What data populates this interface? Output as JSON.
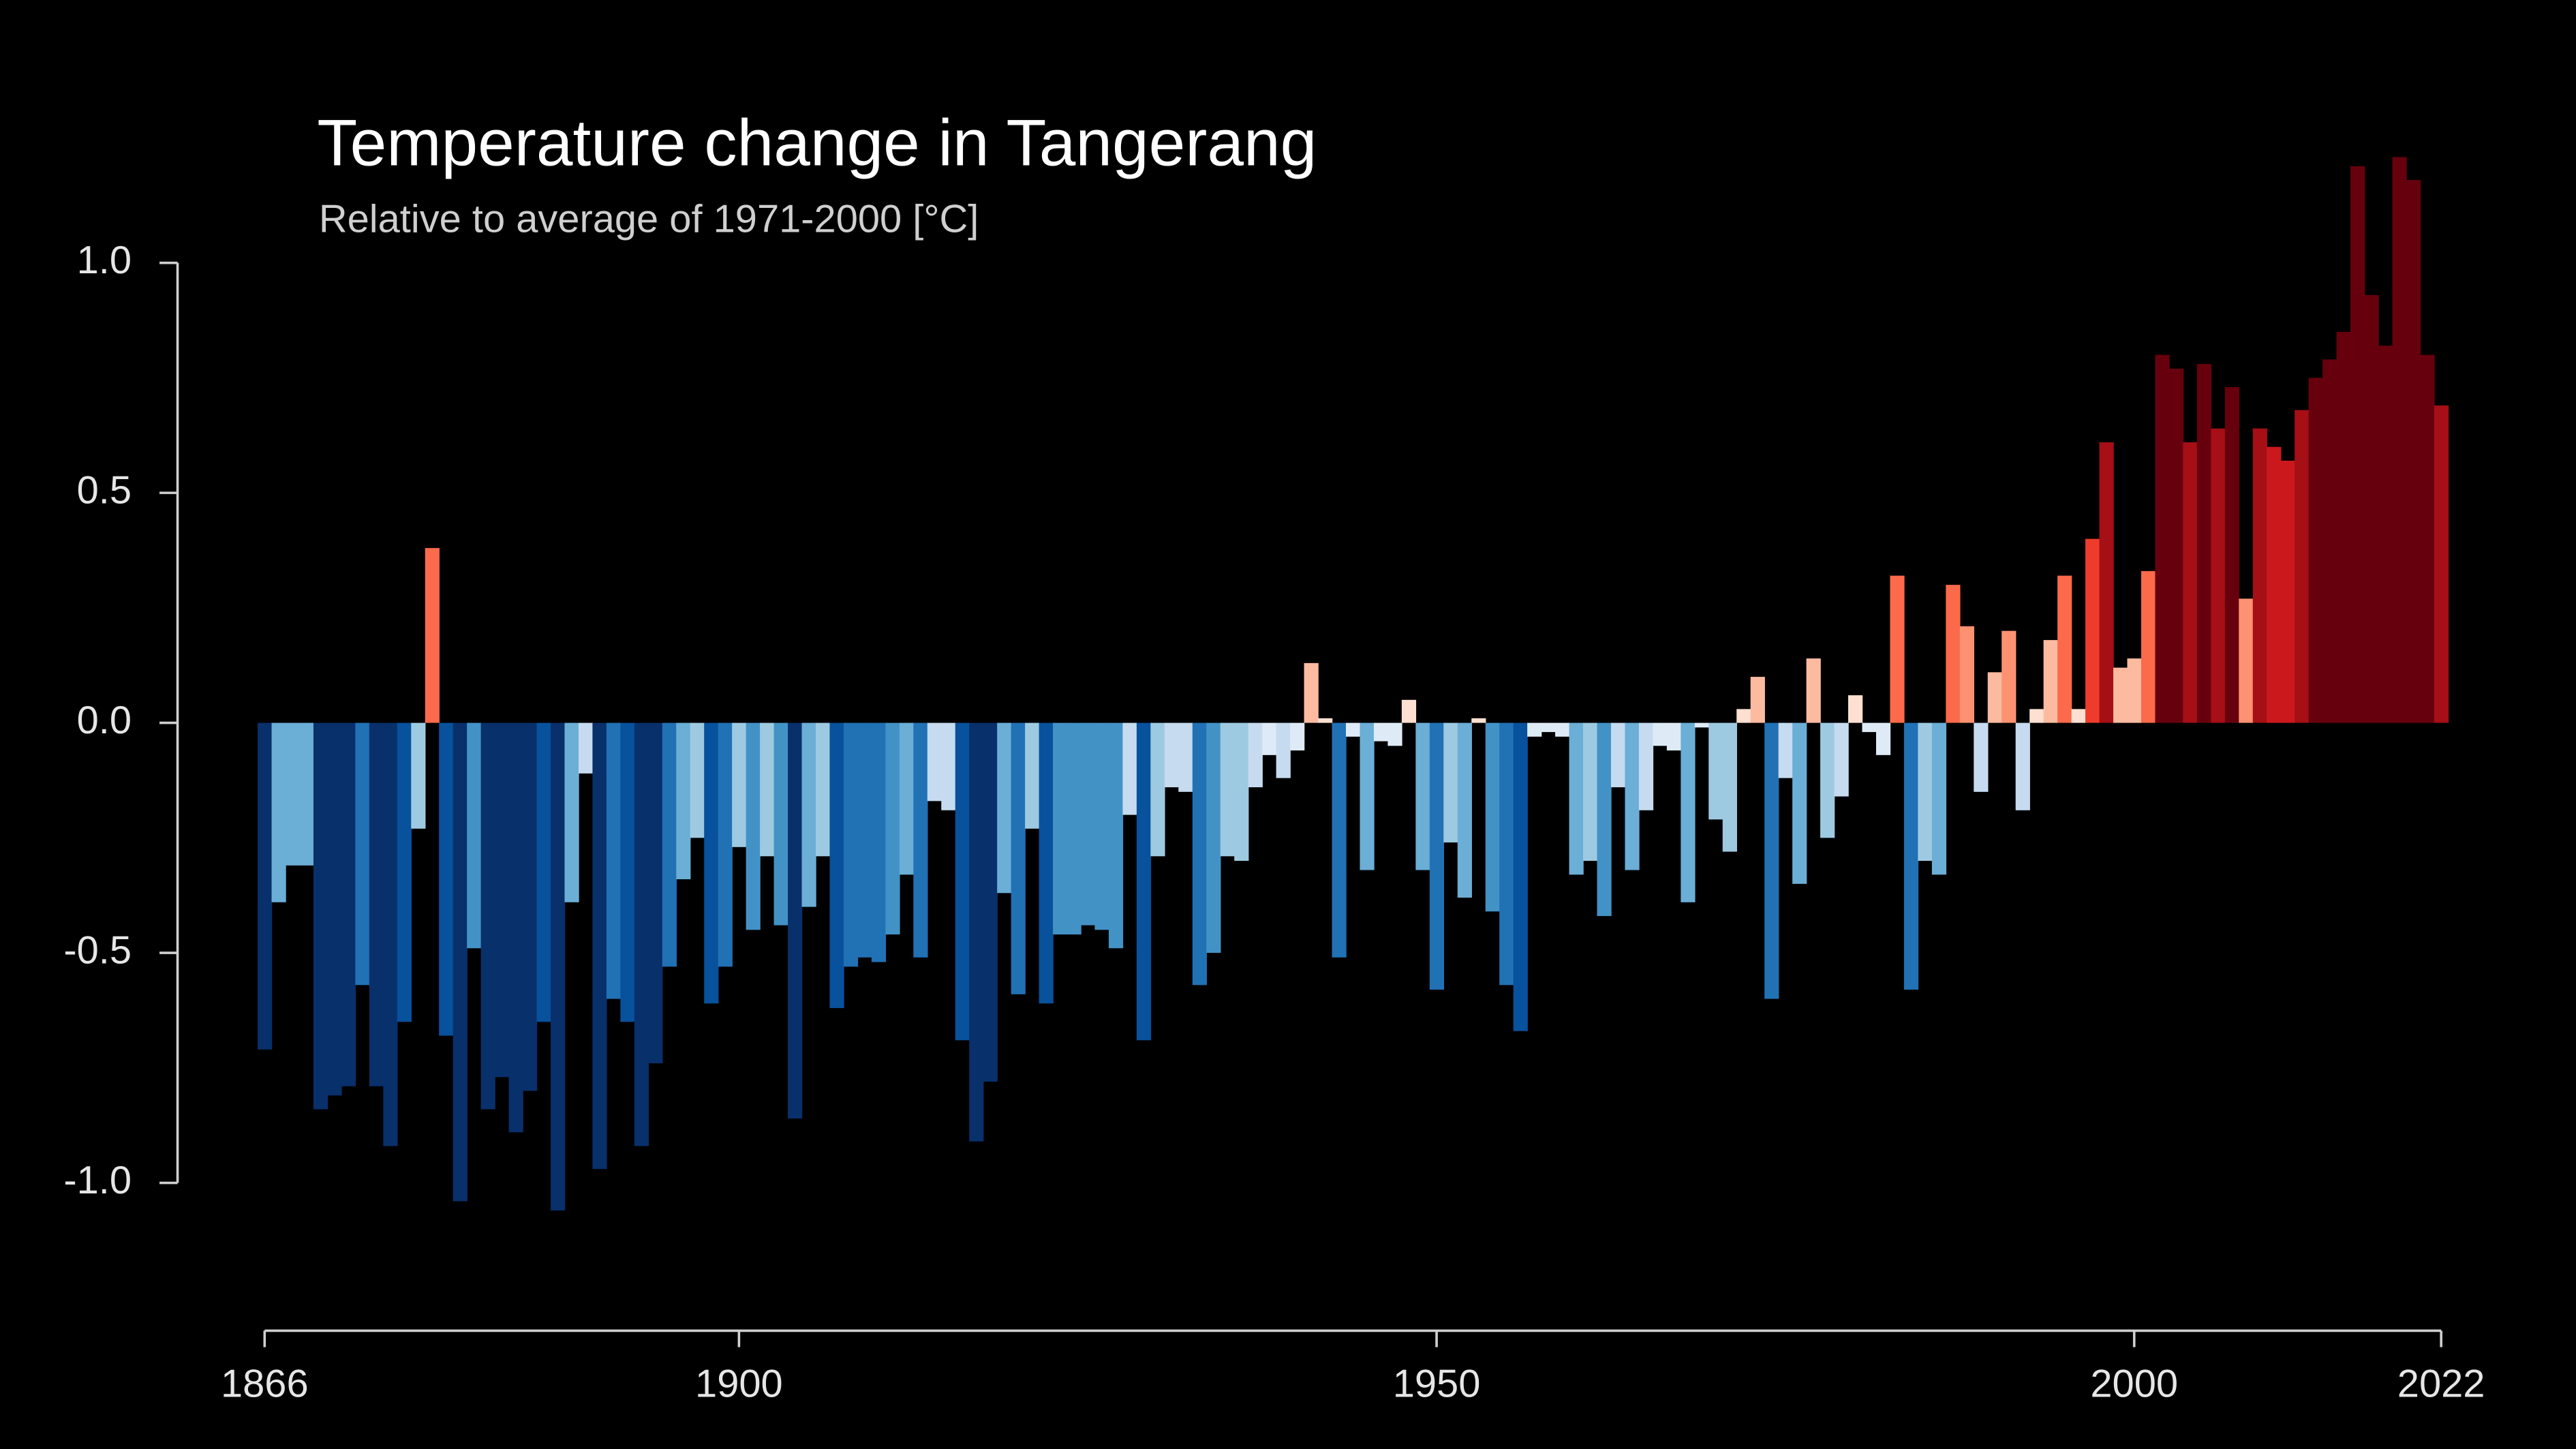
{
  "chart_data": {
    "type": "bar",
    "title": "Temperature change in Tangerang",
    "subtitle": "Relative to average of 1971-2000  [°C]",
    "x": [
      1866,
      1867,
      1868,
      1869,
      1870,
      1871,
      1872,
      1873,
      1874,
      1875,
      1876,
      1877,
      1878,
      1879,
      1880,
      1881,
      1882,
      1883,
      1884,
      1885,
      1886,
      1887,
      1888,
      1889,
      1890,
      1891,
      1892,
      1893,
      1894,
      1895,
      1896,
      1897,
      1898,
      1899,
      1900,
      1901,
      1902,
      1903,
      1904,
      1905,
      1906,
      1907,
      1908,
      1909,
      1910,
      1911,
      1912,
      1913,
      1914,
      1915,
      1916,
      1917,
      1918,
      1919,
      1920,
      1921,
      1922,
      1923,
      1924,
      1925,
      1926,
      1927,
      1928,
      1929,
      1930,
      1931,
      1932,
      1933,
      1934,
      1935,
      1936,
      1937,
      1938,
      1939,
      1940,
      1941,
      1942,
      1943,
      1944,
      1945,
      1946,
      1947,
      1948,
      1949,
      1950,
      1951,
      1952,
      1953,
      1954,
      1955,
      1956,
      1957,
      1958,
      1959,
      1960,
      1961,
      1962,
      1963,
      1964,
      1965,
      1966,
      1967,
      1968,
      1969,
      1970,
      1971,
      1972,
      1973,
      1974,
      1975,
      1976,
      1977,
      1978,
      1979,
      1980,
      1981,
      1982,
      1983,
      1984,
      1985,
      1986,
      1987,
      1988,
      1989,
      1990,
      1991,
      1992,
      1993,
      1994,
      1995,
      1996,
      1997,
      1998,
      1999,
      2000,
      2001,
      2002,
      2003,
      2004,
      2005,
      2006,
      2007,
      2008,
      2009,
      2010,
      2011,
      2012,
      2013,
      2014,
      2015,
      2016,
      2017,
      2018,
      2019,
      2020,
      2021,
      2022
    ],
    "values": [
      -0.71,
      -0.39,
      -0.31,
      -0.31,
      -0.84,
      -0.81,
      -0.79,
      -0.57,
      -0.79,
      -0.92,
      -0.65,
      -0.23,
      0.38,
      -0.68,
      -1.04,
      -0.49,
      -0.84,
      -0.77,
      -0.89,
      -0.8,
      -0.65,
      -1.06,
      -0.39,
      -0.11,
      -0.97,
      -0.6,
      -0.65,
      -0.92,
      -0.74,
      -0.53,
      -0.34,
      -0.25,
      -0.61,
      -0.53,
      -0.27,
      -0.45,
      -0.29,
      -0.44,
      -0.86,
      -0.4,
      -0.29,
      -0.62,
      -0.53,
      -0.51,
      -0.52,
      -0.46,
      -0.33,
      -0.51,
      -0.17,
      -0.19,
      -0.69,
      -0.91,
      -0.78,
      -0.37,
      -0.59,
      -0.23,
      -0.61,
      -0.46,
      -0.46,
      -0.44,
      -0.45,
      -0.49,
      -0.2,
      -0.69,
      -0.29,
      -0.14,
      -0.15,
      -0.57,
      -0.5,
      -0.29,
      -0.3,
      -0.14,
      -0.07,
      -0.12,
      -0.06,
      0.13,
      0.01,
      -0.51,
      -0.03,
      -0.32,
      -0.04,
      -0.05,
      0.05,
      -0.32,
      -0.58,
      -0.26,
      -0.38,
      0.01,
      -0.41,
      -0.57,
      -0.67,
      -0.03,
      -0.02,
      -0.03,
      -0.33,
      -0.3,
      -0.42,
      -0.14,
      -0.32,
      -0.19,
      -0.05,
      -0.06,
      -0.39,
      -0.01,
      -0.21,
      -0.28,
      0.03,
      0.1,
      -0.6,
      -0.12,
      -0.35,
      0.14,
      -0.25,
      -0.16,
      0.06,
      -0.02,
      -0.07,
      0.32,
      -0.58,
      -0.3,
      -0.33,
      0.3,
      0.21,
      -0.15,
      0.11,
      0.2,
      -0.19,
      0.03,
      0.18,
      0.32,
      0.03,
      0.4,
      0.61,
      0.12,
      0.14,
      0.33,
      0.8,
      0.77,
      0.61,
      0.78,
      0.64,
      0.73,
      0.27,
      0.64,
      0.6,
      0.57,
      0.68,
      0.75,
      0.79,
      0.85,
      1.21,
      0.93,
      0.82,
      1.23,
      1.18,
      0.8,
      0.69
    ],
    "colors": [
      "#08306b",
      "#08519c",
      "#2171b5",
      "#4292c6",
      "#6baed6",
      "#9ecae1",
      "#c6dbef",
      "#deebf7",
      "#fee0d2",
      "#fcbba1",
      "#fc9272",
      "#fb6a4a",
      "#ef3b2c",
      "#cb181d",
      "#a50f15",
      "#67000d"
    ],
    "color_limits": [
      -0.8,
      0.8
    ],
    "xlim": [
      1866,
      2022
    ],
    "xticks": [
      1866,
      1900,
      1950,
      2000,
      2022
    ],
    "ylim": [
      -1.3,
      1.3
    ],
    "yticks": [
      {
        "value": 1.0,
        "label": "1.0"
      },
      {
        "value": 0.5,
        "label": "0.5"
      },
      {
        "value": 0,
        "label": "0.0"
      },
      {
        "value": -0.5,
        "label": "-0.5"
      },
      {
        "value": -1.0,
        "label": "-1.0"
      }
    ]
  }
}
